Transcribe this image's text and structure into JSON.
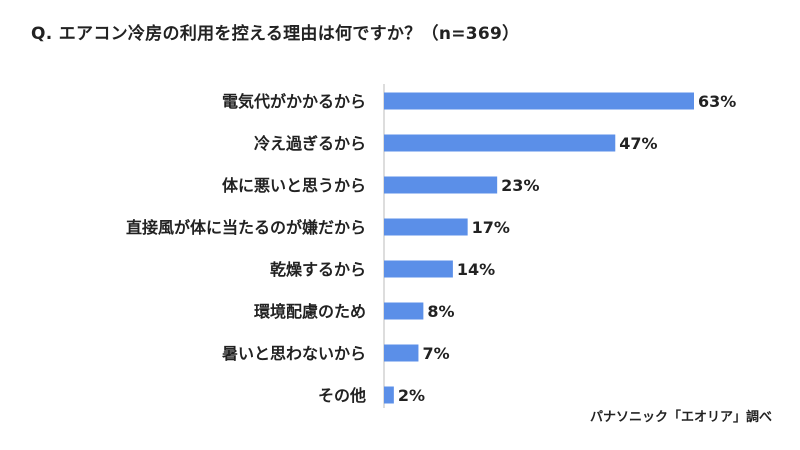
{
  "chart_data": {
    "type": "bar",
    "orientation": "horizontal",
    "title": "Q. エアコン冷房の利用を控える理由は何ですか？（n=369）",
    "categories": [
      "電気代がかかるから",
      "冷え過ぎるから",
      "体に悪いと思うから",
      "直接風が体に当たるのが嫌だから",
      "乾燥するから",
      "環境配慮のため",
      "暑いと思わないから",
      "その他"
    ],
    "values": [
      63,
      47,
      23,
      17,
      14,
      8,
      7,
      2
    ],
    "value_labels": [
      "63%",
      "47%",
      "23%",
      "17%",
      "14%",
      "8%",
      "7%",
      "2%"
    ],
    "unit": "%",
    "xlabel": "",
    "ylabel": "",
    "grid": false,
    "bar_color": "#5b8fe8"
  },
  "source": "パナソニック「エオリア」調べ"
}
